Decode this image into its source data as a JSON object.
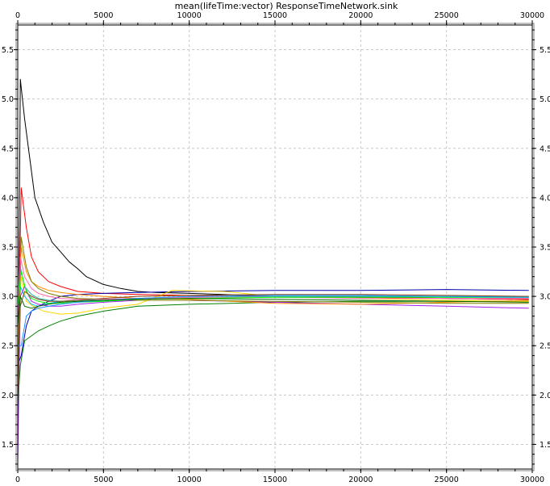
{
  "chart_data": {
    "type": "line",
    "title": "mean(lifeTime:vector) ResponseTimeNetwork.sink",
    "xlabel": "",
    "ylabel": "",
    "xlim": [
      0,
      30000
    ],
    "ylim": [
      1.25,
      5.75
    ],
    "x_ticks": [
      0,
      5000,
      10000,
      15000,
      20000,
      25000,
      30000
    ],
    "x_tick_labels": [
      "0",
      "5000",
      "10000",
      "15000",
      "20000",
      "25000",
      "30000"
    ],
    "y_ticks": [
      1.5,
      2.0,
      2.5,
      3.0,
      3.5,
      4.0,
      4.5,
      5.0,
      5.5
    ],
    "y_tick_labels": [
      "1.5",
      "2.0",
      "2.5",
      "3.0",
      "3.5",
      "4.0",
      "4.5",
      "5.0",
      "5.5"
    ],
    "grid": true,
    "legend": "none",
    "series": [
      {
        "color": "#000000",
        "x": [
          0,
          150,
          400,
          700,
          1000,
          1500,
          2000,
          2500,
          3000,
          3500,
          4000,
          5000,
          6000,
          7000,
          8000,
          10000,
          12000,
          15000,
          20000,
          25000,
          29800
        ],
        "y": [
          1.6,
          5.2,
          4.8,
          4.4,
          4.0,
          3.75,
          3.55,
          3.45,
          3.35,
          3.28,
          3.2,
          3.12,
          3.08,
          3.05,
          3.04,
          3.03,
          3.02,
          3.0,
          2.99,
          2.98,
          2.97
        ]
      },
      {
        "color": "#ff0000",
        "x": [
          0,
          200,
          500,
          800,
          1200,
          1800,
          2500,
          3500,
          5000,
          7000,
          10000,
          15000,
          20000,
          25000,
          29800
        ],
        "y": [
          2.2,
          4.1,
          3.7,
          3.4,
          3.25,
          3.15,
          3.1,
          3.05,
          3.03,
          3.02,
          3.01,
          3.0,
          2.99,
          2.98,
          2.97
        ]
      },
      {
        "color": "#008000",
        "x": [
          0,
          150,
          400,
          800,
          1200,
          1800,
          2500,
          3500,
          5000,
          7000,
          10000,
          15000,
          20000,
          25000,
          29800
        ],
        "y": [
          1.9,
          2.3,
          2.55,
          2.6,
          2.65,
          2.7,
          2.75,
          2.8,
          2.85,
          2.9,
          2.92,
          2.94,
          2.95,
          2.95,
          2.95
        ]
      },
      {
        "color": "#0000aa",
        "x": [
          0,
          200,
          500,
          800,
          1200,
          1800,
          2500,
          3500,
          5000,
          7000,
          10000,
          15000,
          20000,
          25000,
          29800
        ],
        "y": [
          2.3,
          2.4,
          2.7,
          2.85,
          2.9,
          2.95,
          3.0,
          3.02,
          3.03,
          3.04,
          3.05,
          3.06,
          3.06,
          3.07,
          3.06
        ]
      },
      {
        "color": "#ffd700",
        "x": [
          0,
          200,
          500,
          900,
          1500,
          2500,
          3500,
          5000,
          7000,
          9000,
          12000,
          15000,
          20000,
          25000,
          29800
        ],
        "y": [
          2.5,
          3.2,
          2.95,
          2.9,
          2.85,
          2.82,
          2.83,
          2.88,
          2.92,
          3.06,
          3.05,
          3.0,
          2.98,
          2.96,
          2.95
        ]
      },
      {
        "color": "#00bfff",
        "x": [
          0,
          150,
          400,
          800,
          1200,
          1800,
          2500,
          3500,
          5000,
          7000,
          10000,
          15000,
          20000,
          25000,
          29800
        ],
        "y": [
          2.6,
          3.1,
          3.0,
          2.92,
          2.9,
          2.93,
          2.95,
          2.96,
          2.97,
          2.98,
          2.99,
          3.0,
          3.0,
          2.99,
          2.99
        ]
      },
      {
        "color": "#a020f0",
        "x": [
          0,
          150,
          400,
          800,
          1200,
          1800,
          2500,
          3500,
          5000,
          7000,
          10000,
          15000,
          20000,
          25000,
          29800
        ],
        "y": [
          1.3,
          3.0,
          3.1,
          2.95,
          2.92,
          2.9,
          2.9,
          2.92,
          2.94,
          2.96,
          2.96,
          2.94,
          2.92,
          2.9,
          2.88
        ]
      },
      {
        "color": "#ff8c00",
        "x": [
          0,
          200,
          500,
          800,
          1200,
          1800,
          2500,
          3500,
          5000,
          7000,
          10000,
          15000,
          20000,
          25000,
          29800
        ],
        "y": [
          2.4,
          3.5,
          3.25,
          3.15,
          3.1,
          3.06,
          3.04,
          3.02,
          3.0,
          2.98,
          2.97,
          2.93,
          2.92,
          2.94,
          2.96
        ]
      },
      {
        "color": "#20b2aa",
        "x": [
          0,
          150,
          400,
          800,
          1200,
          1800,
          2500,
          3500,
          5000,
          7000,
          10000,
          15000,
          20000,
          25000,
          29800
        ],
        "y": [
          2.1,
          3.3,
          3.1,
          3.02,
          2.98,
          2.96,
          2.95,
          2.96,
          2.97,
          2.98,
          2.99,
          3.0,
          3.0,
          3.0,
          3.0
        ]
      },
      {
        "color": "#808000",
        "x": [
          0,
          200,
          500,
          800,
          1200,
          1800,
          2500,
          3500,
          5000,
          7000,
          10000,
          15000,
          20000,
          25000,
          29800
        ],
        "y": [
          2.2,
          3.6,
          3.3,
          3.15,
          3.08,
          3.03,
          3.0,
          2.98,
          2.97,
          2.96,
          2.96,
          2.95,
          2.94,
          2.93,
          2.93
        ]
      },
      {
        "color": "#ff69b4",
        "x": [
          0,
          150,
          400,
          800,
          1200,
          1800,
          2500,
          3500,
          5000,
          7000,
          10000,
          15000,
          20000,
          25000,
          29800
        ],
        "y": [
          2.8,
          3.4,
          3.2,
          3.08,
          3.03,
          3.0,
          2.98,
          2.97,
          2.97,
          2.98,
          2.99,
          2.99,
          2.98,
          2.98,
          2.98
        ]
      },
      {
        "color": "#00ff00",
        "x": [
          0,
          200,
          500,
          800,
          1200,
          1800,
          2500,
          3500,
          5000,
          7000,
          10000,
          15000,
          20000,
          25000,
          29800
        ],
        "y": [
          2.9,
          3.25,
          3.05,
          2.98,
          2.95,
          2.93,
          2.93,
          2.94,
          2.95,
          2.97,
          2.98,
          2.99,
          2.99,
          2.99,
          2.99
        ]
      },
      {
        "color": "#8b4513",
        "x": [
          0,
          150,
          400,
          800,
          1200,
          1800,
          2500,
          3500,
          5000,
          7000,
          10000,
          15000,
          20000,
          25000,
          29800
        ],
        "y": [
          2.0,
          2.9,
          3.05,
          3.0,
          2.97,
          2.95,
          2.95,
          2.96,
          2.98,
          3.0,
          3.01,
          3.02,
          3.02,
          3.01,
          3.0
        ]
      },
      {
        "color": "#1e90ff",
        "x": [
          0,
          200,
          500,
          800,
          1200,
          1800,
          2500,
          3500,
          5000,
          7000,
          10000,
          15000,
          20000,
          25000,
          29800
        ],
        "y": [
          2.5,
          2.5,
          2.8,
          2.85,
          2.88,
          2.9,
          2.92,
          2.94,
          2.96,
          2.98,
          3.0,
          3.01,
          3.01,
          3.0,
          2.99
        ]
      },
      {
        "color": "#006400",
        "x": [
          0,
          150,
          400,
          800,
          1200,
          1800,
          2500,
          3500,
          5000,
          7000,
          10000,
          15000,
          20000,
          25000,
          29800
        ],
        "y": [
          2.7,
          3.0,
          2.9,
          2.88,
          2.9,
          2.92,
          2.94,
          2.95,
          2.96,
          2.97,
          2.98,
          2.97,
          2.96,
          2.95,
          2.94
        ]
      }
    ]
  }
}
